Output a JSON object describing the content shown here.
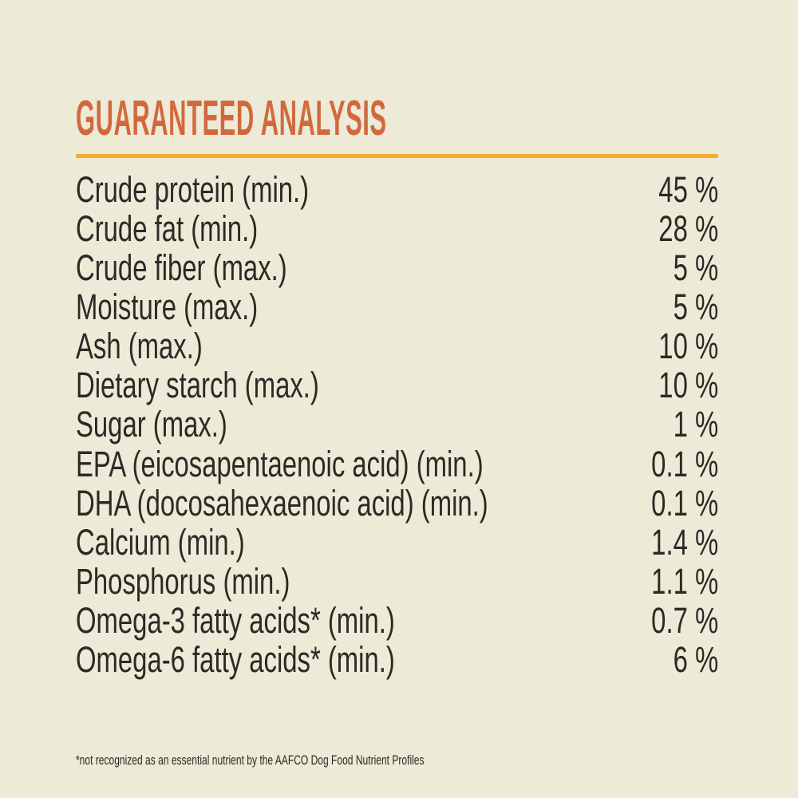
{
  "colors": {
    "background": "#edead7",
    "heading_orange": "#d2693c",
    "rule_amber": "#f6a82c",
    "text": "#2b2a25"
  },
  "heading": {
    "title": "GUARANTEED ANALYSIS"
  },
  "table": {
    "rows": [
      {
        "label": "Crude protein (min.)",
        "value": "45 %"
      },
      {
        "label": "Crude fat (min.)",
        "value": "28 %"
      },
      {
        "label": "Crude fiber (max.)",
        "value": "5 %"
      },
      {
        "label": "Moisture (max.)",
        "value": "5 %"
      },
      {
        "label": "Ash (max.)",
        "value": "10 %"
      },
      {
        "label": "Dietary starch (max.)",
        "value": "10 %"
      },
      {
        "label": "Sugar (max.)",
        "value": "1 %"
      },
      {
        "label": "EPA (eicosapentaenoic acid) (min.)",
        "value": "0.1 %"
      },
      {
        "label": "DHA (docosahexaenoic acid) (min.)",
        "value": "0.1 %"
      },
      {
        "label": "Calcium (min.)",
        "value": "1.4 %"
      },
      {
        "label": "Phosphorus (min.)",
        "value": "1.1 %"
      },
      {
        "label": "Omega-3 fatty acids* (min.)",
        "value": "0.7 %"
      },
      {
        "label": "Omega-6 fatty acids* (min.)",
        "value": "6 %"
      }
    ]
  },
  "footnote": "*not recognized as an essential nutrient by the AAFCO Dog Food Nutrient Profiles"
}
